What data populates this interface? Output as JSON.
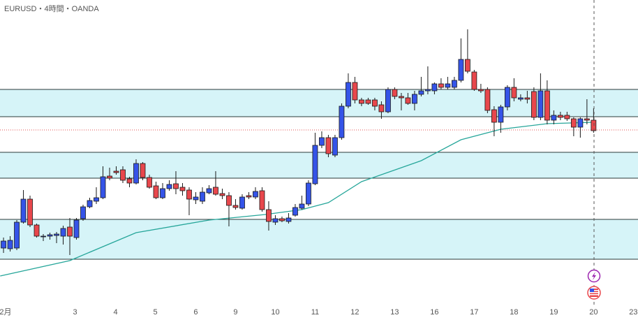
{
  "chart_data": {
    "type": "candlestick",
    "title": "EURUSD・4時間・OANDA",
    "up_color": "#3554e8",
    "down_color": "#e8474c",
    "outline_color": "#1a1a1a",
    "xlim": [
      -0.53,
      95.7
    ],
    "ylim": [
      0,
      458
    ],
    "xticks": [
      {
        "value": 0.3,
        "label": "2月"
      },
      {
        "value": 10.8,
        "label": "3"
      },
      {
        "value": 16.9,
        "label": "4"
      },
      {
        "value": 22.9,
        "label": "5"
      },
      {
        "value": 29,
        "label": "6"
      },
      {
        "value": 35,
        "label": "9"
      },
      {
        "value": 41,
        "label": "10"
      },
      {
        "value": 47,
        "label": "11"
      },
      {
        "value": 53,
        "label": "12"
      },
      {
        "value": 59,
        "label": "13"
      },
      {
        "value": 65,
        "label": "16"
      },
      {
        "value": 71,
        "label": "17"
      },
      {
        "value": 77,
        "label": "18"
      },
      {
        "value": 83,
        "label": "19"
      },
      {
        "value": 89,
        "label": "20"
      },
      {
        "value": 95,
        "label": "23"
      }
    ],
    "open": [
      103,
      102,
      103,
      140,
      173,
      136,
      120,
      120,
      121,
      120,
      133,
      118,
      145,
      162,
      170,
      175,
      206,
      213,
      215,
      202,
      196,
      224,
      204,
      192,
      175,
      188,
      195,
      190,
      186,
      172,
      170,
      182,
      190,
      181,
      178,
      164,
      160,
      178,
      176,
      185,
      158,
      140,
      145,
      141,
      150,
      160,
      166,
      195,
      250,
      261,
      236,
      261,
      306,
      340,
      315,
      315,
      315,
      308,
      298,
      330,
      320,
      318,
      310,
      323,
      328,
      328,
      338,
      333,
      333,
      343,
      373,
      355,
      330,
      330,
      301,
      283,
      305,
      333,
      316,
      318,
      327,
      290,
      328,
      286,
      293,
      293,
      288,
      276,
      288,
      286
    ],
    "high": [
      118,
      120,
      143,
      186,
      178,
      138,
      123,
      125,
      126,
      135,
      146,
      146,
      165,
      175,
      190,
      220,
      218,
      220,
      220,
      205,
      230,
      226,
      208,
      198,
      196,
      200,
      213,
      196,
      190,
      183,
      190,
      193,
      213,
      188,
      183,
      173,
      180,
      183,
      190,
      190,
      170,
      150,
      148,
      153,
      166,
      178,
      200,
      268,
      270,
      265,
      265,
      310,
      353,
      348,
      318,
      318,
      318,
      313,
      333,
      333,
      325,
      325,
      328,
      348,
      363,
      340,
      346,
      348,
      348,
      403,
      416,
      358,
      338,
      333,
      306,
      308,
      336,
      346,
      323,
      328,
      333,
      353,
      343,
      300,
      298,
      298,
      290,
      290,
      316,
      303
    ],
    "low": [
      96,
      98,
      100,
      138,
      133,
      118,
      113,
      115,
      110,
      108,
      93,
      115,
      142,
      160,
      166,
      173,
      200,
      208,
      196,
      190,
      194,
      200,
      188,
      173,
      173,
      185,
      180,
      178,
      150,
      166,
      166,
      180,
      178,
      173,
      134,
      158,
      158,
      173,
      173,
      155,
      128,
      136,
      140,
      138,
      148,
      158,
      163,
      193,
      246,
      233,
      233,
      258,
      303,
      310,
      306,
      308,
      300,
      288,
      296,
      316,
      300,
      308,
      300,
      320,
      323,
      323,
      330,
      330,
      330,
      340,
      353,
      328,
      325,
      296,
      263,
      268,
      300,
      313,
      313,
      310,
      286,
      286,
      280,
      280,
      286,
      285,
      263,
      261,
      280,
      268
    ],
    "close": [
      113,
      114,
      140,
      173,
      136,
      120,
      120,
      122,
      123,
      131,
      120,
      143,
      162,
      171,
      175,
      205,
      203,
      211,
      200,
      196,
      224,
      204,
      190,
      175,
      188,
      194,
      188,
      185,
      173,
      176,
      183,
      188,
      180,
      178,
      164,
      161,
      176,
      176,
      184,
      158,
      141,
      145,
      142,
      146,
      161,
      166,
      196,
      250,
      261,
      238,
      261,
      306,
      340,
      315,
      310,
      310,
      306,
      298,
      330,
      320,
      318,
      310,
      323,
      328,
      330,
      338,
      333,
      338,
      343,
      373,
      356,
      330,
      328,
      300,
      283,
      305,
      333,
      318,
      318,
      316,
      290,
      328,
      286,
      293,
      290,
      288,
      276,
      288,
      286,
      271
    ],
    "moving_average": {
      "color": "#26a69a",
      "x": [
        -0.5,
        10,
        20,
        31,
        39.5,
        45,
        49,
        54,
        63,
        69,
        75,
        82,
        89
      ],
      "values": [
        63,
        85,
        125,
        143,
        151,
        158,
        168,
        198,
        228,
        258,
        273,
        281,
        283
      ]
    },
    "zones": [
      {
        "top": 330,
        "bottom": 291
      },
      {
        "top": 240,
        "bottom": 203
      },
      {
        "top": 144,
        "bottom": 87
      }
    ],
    "zone_color": "#d6f4f8",
    "zone_border": "#2b3a3a",
    "price_line": 272,
    "price_line_color": "#e05050"
  }
}
